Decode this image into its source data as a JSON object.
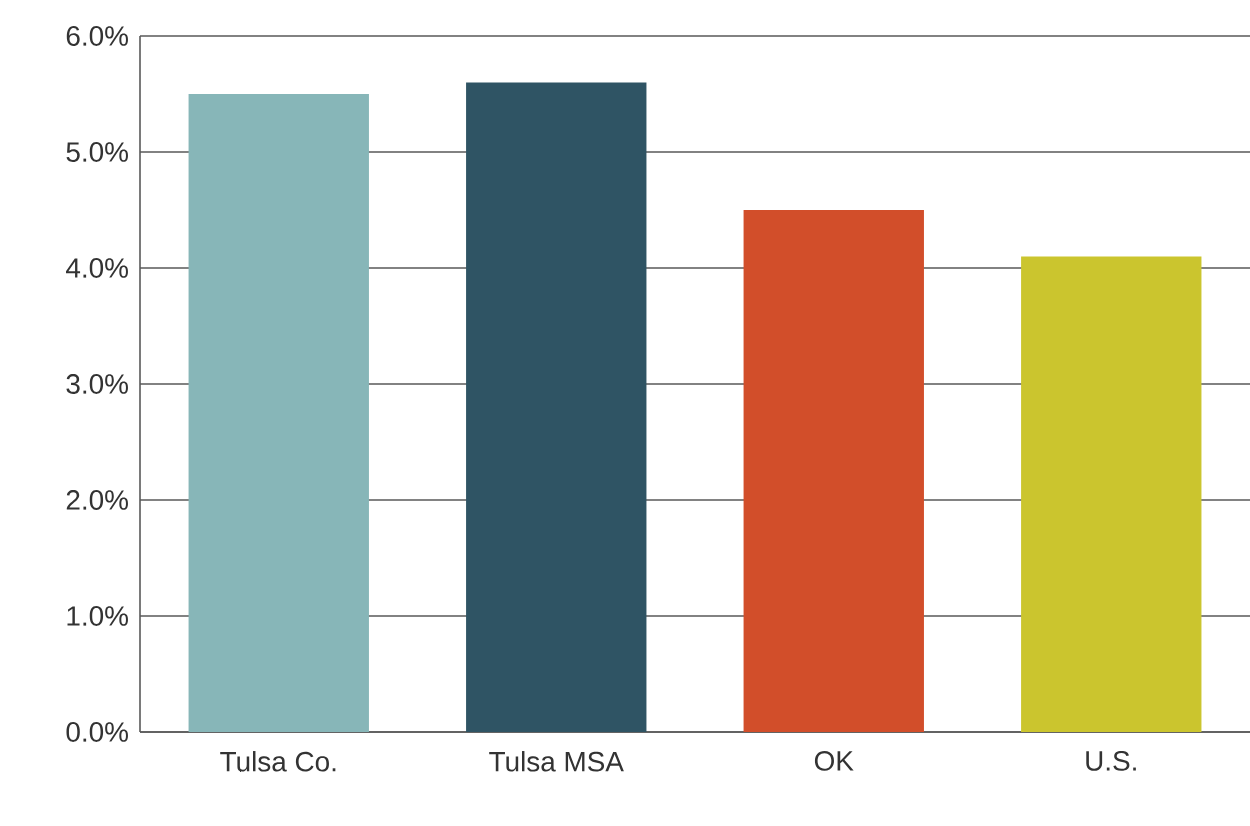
{
  "chart_data": {
    "type": "bar",
    "categories": [
      "Tulsa Co.",
      "Tulsa MSA",
      "OK",
      "U.S."
    ],
    "values": [
      5.5,
      5.6,
      4.5,
      4.1
    ],
    "colors": [
      "#87b6b8",
      "#2f5464",
      "#d24e2a",
      "#cbc52e"
    ],
    "ylim": [
      0,
      6
    ],
    "yticks": [
      {
        "value": 0,
        "label": "0.0%"
      },
      {
        "value": 1,
        "label": "1.0%"
      },
      {
        "value": 2,
        "label": "2.0%"
      },
      {
        "value": 3,
        "label": "3.0%"
      },
      {
        "value": 4,
        "label": "4.0%"
      },
      {
        "value": 5,
        "label": "5.0%"
      },
      {
        "value": 6,
        "label": "6.0%"
      }
    ],
    "grid": "y"
  }
}
